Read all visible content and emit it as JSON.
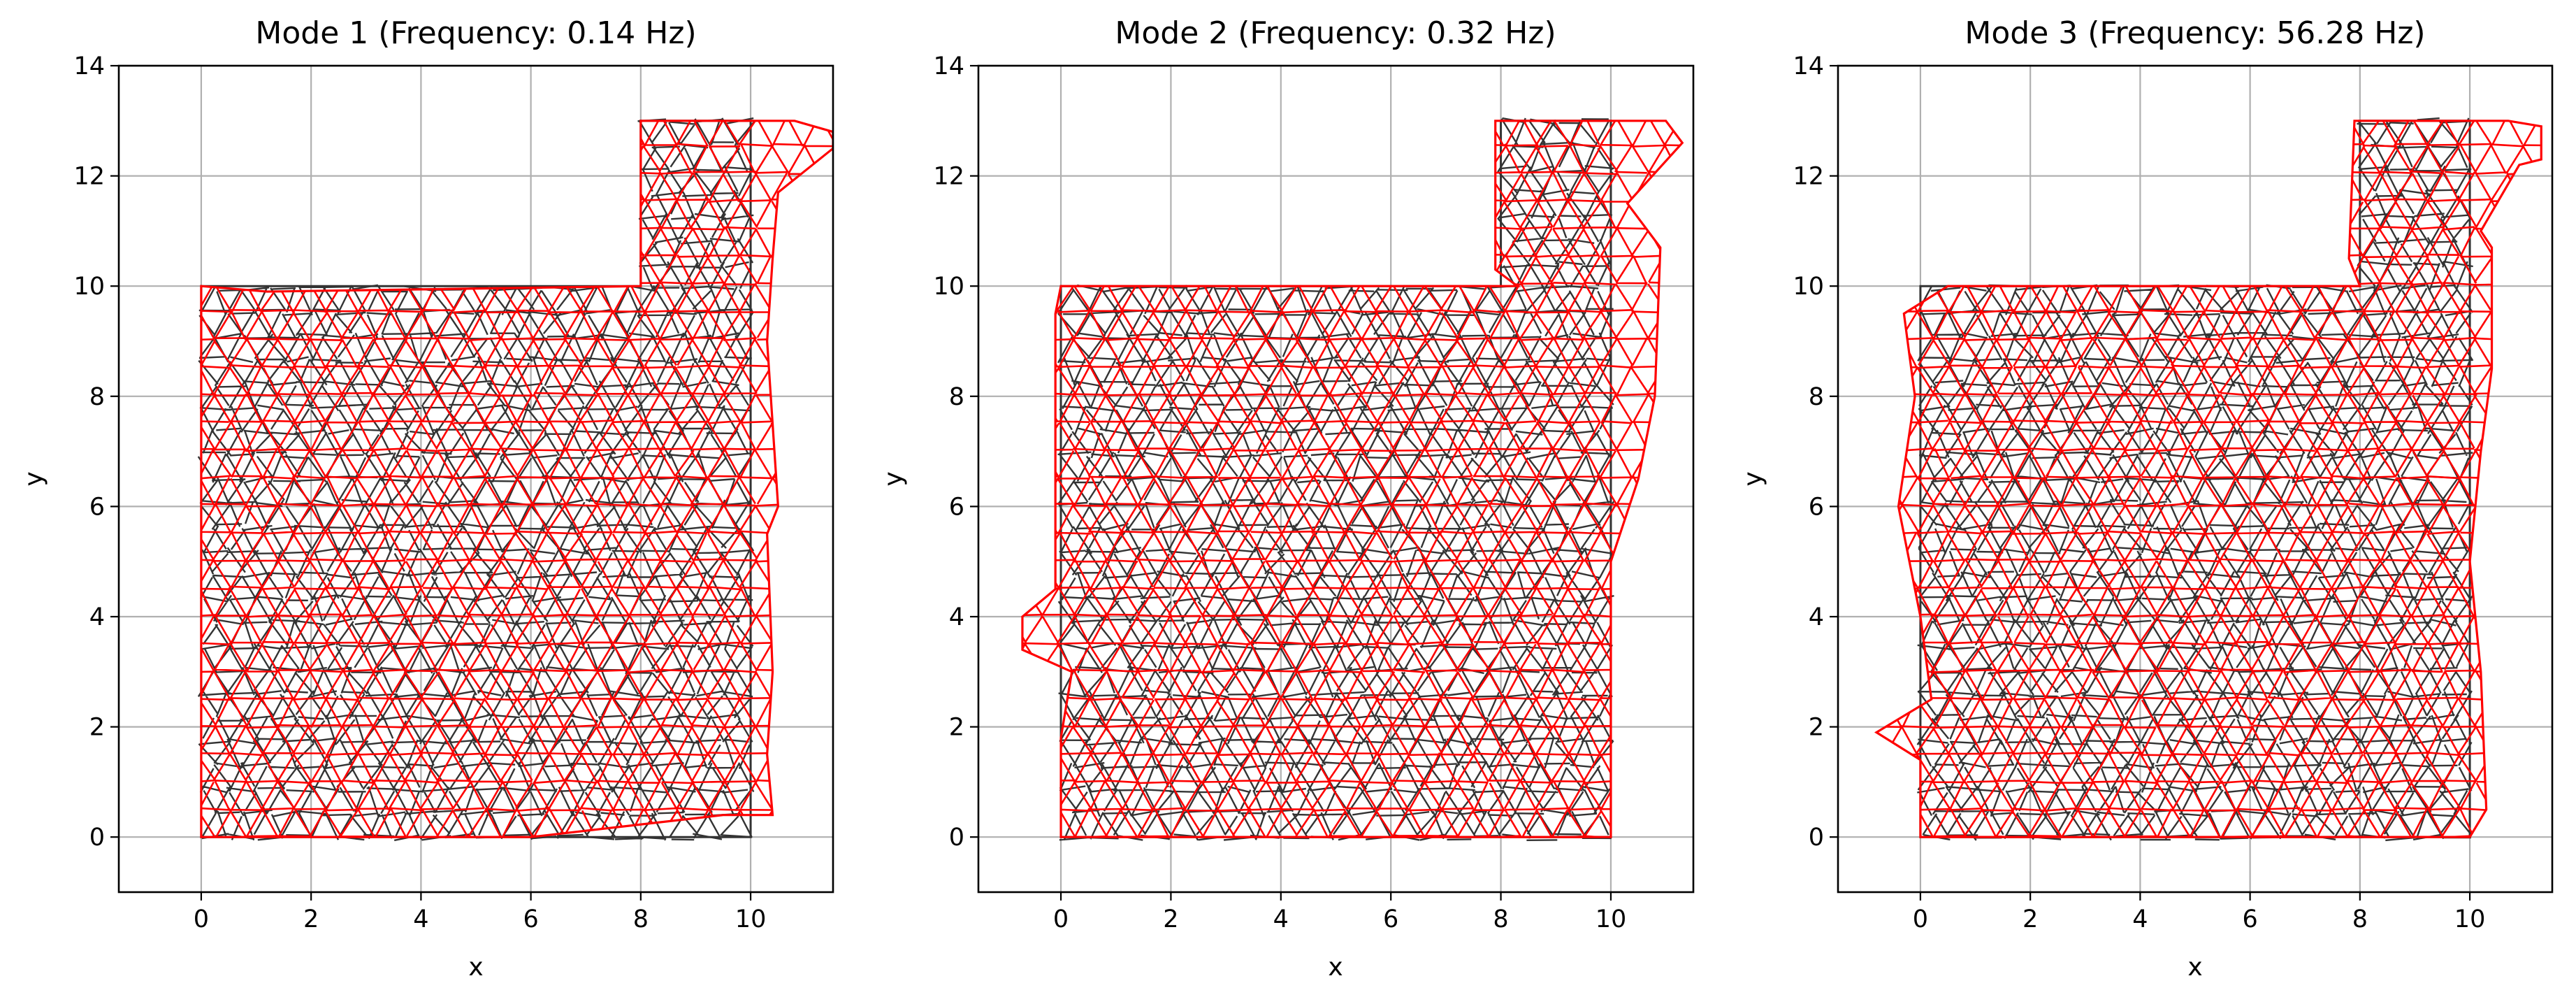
{
  "figure": {
    "panels": [
      {
        "title": "Mode 1 (Frequency: 0.14 Hz)",
        "xlabel": "x",
        "ylabel": "y"
      },
      {
        "title": "Mode 2 (Frequency: 0.32 Hz)",
        "xlabel": "x",
        "ylabel": "y"
      },
      {
        "title": "Mode 3 (Frequency: 56.28 Hz)",
        "xlabel": "x",
        "ylabel": "y"
      }
    ]
  },
  "chart_data": [
    {
      "type": "mesh",
      "title": "Mode 1 (Frequency: 0.14 Hz)",
      "xlabel": "x",
      "ylabel": "y",
      "xlim": [
        -1.5,
        11.5
      ],
      "ylim": [
        -1,
        14
      ],
      "xticks": [
        0,
        2,
        4,
        6,
        8,
        10
      ],
      "yticks": [
        0,
        2,
        4,
        6,
        8,
        10,
        12,
        14
      ],
      "grid": true,
      "colors": {
        "original_mesh": "#333333",
        "mode_shape": "#ff0000"
      },
      "original_outline": [
        [
          0,
          0
        ],
        [
          10,
          0
        ],
        [
          10,
          13
        ],
        [
          8,
          13
        ],
        [
          8,
          10
        ],
        [
          0,
          10
        ]
      ],
      "deformed_outline": [
        [
          0,
          0
        ],
        [
          6,
          0
        ],
        [
          9.5,
          0.4
        ],
        [
          10.4,
          0.4
        ],
        [
          10.3,
          1.5
        ],
        [
          10.4,
          3
        ],
        [
          10.3,
          5.5
        ],
        [
          10.5,
          6
        ],
        [
          10.3,
          9
        ],
        [
          10.4,
          10.5
        ],
        [
          10.5,
          11.7
        ],
        [
          11.5,
          12.5
        ],
        [
          11.5,
          12.8
        ],
        [
          10.8,
          13
        ],
        [
          8,
          13
        ],
        [
          8,
          10
        ],
        [
          1.2,
          9.9
        ],
        [
          0,
          10
        ]
      ],
      "mode_frequency_hz": 0.14
    },
    {
      "type": "mesh",
      "title": "Mode 2 (Frequency: 0.32 Hz)",
      "xlabel": "x",
      "ylabel": "y",
      "xlim": [
        -1.5,
        11.5
      ],
      "ylim": [
        -1,
        14
      ],
      "xticks": [
        0,
        2,
        4,
        6,
        8,
        10
      ],
      "yticks": [
        0,
        2,
        4,
        6,
        8,
        10,
        12,
        14
      ],
      "grid": true,
      "colors": {
        "original_mesh": "#333333",
        "mode_shape": "#ff0000"
      },
      "original_outline": [
        [
          0,
          0
        ],
        [
          10,
          0
        ],
        [
          10,
          13
        ],
        [
          8,
          13
        ],
        [
          8,
          10
        ],
        [
          0,
          10
        ]
      ],
      "deformed_outline": [
        [
          0,
          0
        ],
        [
          10,
          0
        ],
        [
          10,
          5
        ],
        [
          10.5,
          6.5
        ],
        [
          10.8,
          8
        ],
        [
          10.9,
          10.7
        ],
        [
          10.3,
          11.5
        ],
        [
          11.3,
          12.6
        ],
        [
          11,
          13
        ],
        [
          7.9,
          13
        ],
        [
          7.9,
          10.3
        ],
        [
          8.3,
          10
        ],
        [
          0,
          10
        ],
        [
          -0.1,
          9.5
        ],
        [
          -0.1,
          4.5
        ],
        [
          -0.7,
          4
        ],
        [
          -0.7,
          3.4
        ],
        [
          0.2,
          3
        ],
        [
          0,
          1.8
        ],
        [
          0,
          0
        ]
      ],
      "mode_frequency_hz": 0.32
    },
    {
      "type": "mesh",
      "title": "Mode 3 (Frequency: 56.28 Hz)",
      "xlabel": "x",
      "ylabel": "y",
      "xlim": [
        -1.5,
        11.5
      ],
      "ylim": [
        -1,
        14
      ],
      "xticks": [
        0,
        2,
        4,
        6,
        8,
        10
      ],
      "yticks": [
        0,
        2,
        4,
        6,
        8,
        10,
        12,
        14
      ],
      "grid": true,
      "colors": {
        "original_mesh": "#333333",
        "mode_shape": "#ff0000"
      },
      "original_outline": [
        [
          0,
          0
        ],
        [
          10,
          0
        ],
        [
          10,
          13
        ],
        [
          8,
          13
        ],
        [
          8,
          10
        ],
        [
          0,
          10
        ]
      ],
      "deformed_outline": [
        [
          0,
          0
        ],
        [
          10,
          0
        ],
        [
          10.3,
          0.5
        ],
        [
          10.2,
          3
        ],
        [
          10,
          5
        ],
        [
          10.2,
          7
        ],
        [
          10.4,
          8.5
        ],
        [
          10.4,
          10.7
        ],
        [
          10.2,
          11
        ],
        [
          10.9,
          12.2
        ],
        [
          11.3,
          12.3
        ],
        [
          11.3,
          12.9
        ],
        [
          10.7,
          13
        ],
        [
          7.9,
          13
        ],
        [
          7.8,
          10.5
        ],
        [
          8,
          10
        ],
        [
          0.5,
          10
        ],
        [
          -0.3,
          9.5
        ],
        [
          -0.1,
          8
        ],
        [
          -0.4,
          6
        ],
        [
          0,
          4
        ],
        [
          0.2,
          2.5
        ],
        [
          -0.8,
          1.9
        ],
        [
          0,
          1.4
        ],
        [
          0,
          0
        ]
      ],
      "mode_frequency_hz": 56.28
    }
  ]
}
